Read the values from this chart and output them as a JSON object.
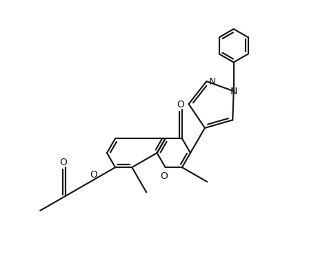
{
  "bg_color": "#ffffff",
  "line_color": "#1a1a1a",
  "line_width": 1.6,
  "figsize": [
    4.74,
    4.02
  ],
  "dpi": 100,
  "xlim": [
    0,
    9.5
  ],
  "ylim": [
    0,
    8.0
  ]
}
